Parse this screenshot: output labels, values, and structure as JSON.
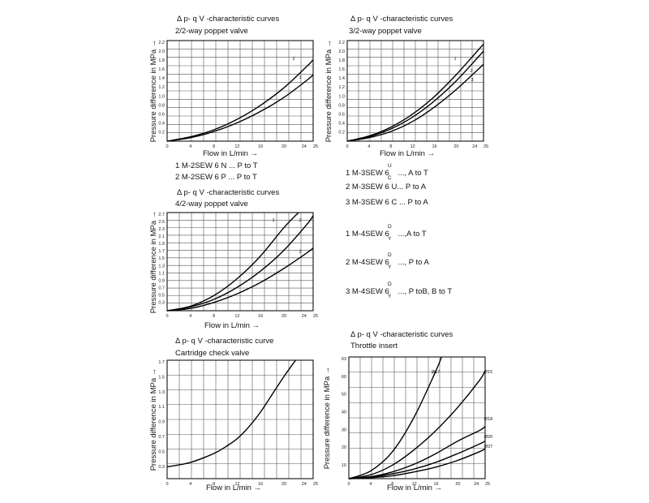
{
  "charts": [
    {
      "title": "Δ p- q V -characteristic curves",
      "subtitle": "2/2-way poppet valve",
      "ylabel": "Pressure difference in MPa →",
      "xlabel": "Flow in L/min →",
      "yticks": [
        "2.2",
        "2.0",
        "1.8",
        "1.6",
        "1.4",
        "1.2",
        "1.0",
        "0.8",
        "0.6",
        "0.4",
        "0.2"
      ],
      "xticks": [
        "0",
        "4",
        "8",
        "12",
        "16",
        "20",
        "24",
        "25"
      ],
      "curve_labels": [
        "2",
        "1"
      ]
    },
    {
      "title": "Δ p- q V -characteristic curves",
      "subtitle": "3/2-way poppet valve",
      "ylabel": "Pressure difference in MPa →",
      "xlabel": "Flow in L/min →",
      "yticks": [
        "2.2",
        "2.0",
        "1.8",
        "1.6",
        "1.4",
        "1.2",
        "1.0",
        "0.8",
        "0.6",
        "0.4",
        "0.2"
      ],
      "xticks": [
        "0",
        "4",
        "8",
        "12",
        "16",
        "20",
        "24",
        "25"
      ],
      "curve_labels": [
        "1",
        "2",
        "3"
      ]
    },
    {
      "title": "Δ p- q V -characteristic curves",
      "subtitle": "4/2-way poppet valve",
      "ylabel": "Pressure difference in MPa →",
      "xlabel": "Flow in L/min →",
      "yticks": [
        "2.7",
        "2.5",
        "2.3",
        "2.1",
        "1.9",
        "1.7",
        "1.5",
        "1.3",
        "1.1",
        "0.9",
        "0.7",
        "0.5",
        "0.3"
      ],
      "xticks": [
        "0",
        "4",
        "8",
        "12",
        "16",
        "20",
        "24",
        "25"
      ],
      "curve_labels": [
        "1",
        "2",
        "3"
      ]
    },
    {
      "title": "Δ p- q V -characteristic curve",
      "subtitle": "Cartridge check valve",
      "ylabel": "Pressure difference in MPa →",
      "xlabel": "Flow in L/min →",
      "yticks": [
        "1.7",
        "1.5",
        "1.3",
        "1.1",
        "0.9",
        "0.7",
        "0.5",
        "0.3"
      ],
      "xticks": [
        "0",
        "4",
        "8",
        "12",
        "16",
        "20",
        "24",
        "25"
      ],
      "curve_labels": []
    },
    {
      "title": "Δ p- q V -characteristic curves",
      "subtitle": "Throttle insert",
      "ylabel": "Pressure difference in MPa →",
      "xlabel": "Flow in L/min →",
      "yticks": [
        "63",
        "60",
        "50",
        "40",
        "30",
        "20",
        "10"
      ],
      "xticks": [
        "0",
        "4",
        "8",
        "12",
        "16",
        "20",
        "24",
        "25"
      ],
      "curve_labels": [
        "Ø17",
        "Ø15",
        "Ø18",
        "Ø20",
        "Ø27"
      ]
    }
  ],
  "legend_22": [
    "1 M-2SEW 6 N ... P to T",
    "2 M-2SEW 6 P ... P to T"
  ],
  "legend_right": [
    {
      "main": "1 M-3SEW 6",
      "sup": "U",
      "sub": "C",
      "rest": "..., A to T"
    },
    {
      "main": "2 M-3SEW 6 U... P to A",
      "sup": "",
      "sub": "",
      "rest": ""
    },
    {
      "main": "3 M-3SEW 6 C ... P to A",
      "sup": "",
      "sub": "",
      "rest": ""
    },
    {
      "main": "1 M-4SEW 6",
      "sup": "D",
      "sub": "Y",
      "rest": "...,A to T"
    },
    {
      "main": "2 M-4SEW 6",
      "sup": "D",
      "sub": "Y",
      "rest": "..., P to A"
    },
    {
      "main": "3 M-4SEW 6",
      "sup": "D",
      "sub": "Y",
      "rest": "..., P toB, B to T"
    }
  ],
  "chart_data": [
    {
      "type": "line",
      "title": "Δ p- q V -characteristic curves",
      "subtitle": "2/2-way poppet valve",
      "xlabel": "Flow in L/min →",
      "ylabel": "Pressure difference in MPa →",
      "xlim": [
        0,
        25
      ],
      "ylim": [
        0,
        2.3
      ],
      "grid": true,
      "series": [
        {
          "name": "1",
          "x": [
            0,
            4,
            8,
            12,
            16,
            20,
            24,
            25
          ],
          "y": [
            0.0,
            0.08,
            0.22,
            0.42,
            0.68,
            1.0,
            1.4,
            1.52
          ]
        },
        {
          "name": "2",
          "x": [
            0,
            4,
            8,
            12,
            16,
            20,
            24,
            25
          ],
          "y": [
            0.0,
            0.1,
            0.26,
            0.5,
            0.82,
            1.22,
            1.72,
            1.86
          ]
        }
      ]
    },
    {
      "type": "line",
      "title": "Δ p- q V -characteristic curves",
      "subtitle": "3/2-way poppet valve",
      "xlabel": "Flow in L/min →",
      "ylabel": "Pressure difference in MPa →",
      "xlim": [
        0,
        25
      ],
      "ylim": [
        0,
        2.3
      ],
      "grid": true,
      "series": [
        {
          "name": "1",
          "x": [
            0,
            4,
            8,
            12,
            16,
            20,
            24,
            25
          ],
          "y": [
            0.0,
            0.12,
            0.32,
            0.62,
            1.02,
            1.52,
            2.08,
            2.22
          ]
        },
        {
          "name": "2",
          "x": [
            0,
            4,
            8,
            12,
            16,
            20,
            24,
            25
          ],
          "y": [
            0.0,
            0.1,
            0.28,
            0.55,
            0.92,
            1.38,
            1.92,
            2.06
          ]
        },
        {
          "name": "3",
          "x": [
            0,
            4,
            8,
            12,
            16,
            20,
            24,
            25
          ],
          "y": [
            0.0,
            0.08,
            0.22,
            0.45,
            0.78,
            1.18,
            1.64,
            1.76
          ]
        }
      ]
    },
    {
      "type": "line",
      "title": "Δ p- q V -characteristic curves",
      "subtitle": "4/2-way poppet valve",
      "xlabel": "Flow in L/min →",
      "ylabel": "Pressure difference in MPa →",
      "xlim": [
        0,
        25
      ],
      "ylim": [
        0.1,
        2.7
      ],
      "grid": true,
      "series": [
        {
          "name": "1",
          "x": [
            0,
            4,
            8,
            12,
            16,
            20,
            22.5
          ],
          "y": [
            0.1,
            0.22,
            0.5,
            0.95,
            1.55,
            2.3,
            2.7
          ]
        },
        {
          "name": "2",
          "x": [
            0,
            4,
            8,
            12,
            16,
            20,
            24,
            25
          ],
          "y": [
            0.1,
            0.2,
            0.4,
            0.72,
            1.15,
            1.7,
            2.4,
            2.62
          ]
        },
        {
          "name": "3",
          "x": [
            0,
            4,
            8,
            12,
            16,
            20,
            24,
            25
          ],
          "y": [
            0.1,
            0.16,
            0.32,
            0.55,
            0.85,
            1.22,
            1.64,
            1.76
          ]
        }
      ]
    },
    {
      "type": "line",
      "title": "Δ p- q V -characteristic curve",
      "subtitle": "Cartridge check valve",
      "xlabel": "Flow in L/min →",
      "ylabel": "Pressure difference in MPa →",
      "xlim": [
        0,
        25
      ],
      "ylim": [
        0.2,
        1.8
      ],
      "grid": true,
      "series": [
        {
          "x": [
            0,
            4,
            8,
            10,
            12,
            14,
            16,
            18,
            20,
            22
          ],
          "y": [
            0.36,
            0.42,
            0.54,
            0.63,
            0.74,
            0.9,
            1.1,
            1.34,
            1.58,
            1.8
          ]
        }
      ]
    },
    {
      "type": "line",
      "title": "Δ p- q V -characteristic curves",
      "subtitle": "Throttle insert",
      "xlabel": "Flow in L/min →",
      "ylabel": "Pressure difference in MPa →",
      "xlim": [
        0,
        25
      ],
      "ylim": [
        0,
        63
      ],
      "grid": true,
      "series": [
        {
          "name": "Ø17",
          "x": [
            0,
            4,
            8,
            12,
            16,
            17
          ],
          "y": [
            0,
            4,
            14,
            32,
            56,
            63
          ]
        },
        {
          "name": "Ø15",
          "x": [
            0,
            4,
            8,
            12,
            16,
            20,
            24,
            25
          ],
          "y": [
            0,
            2,
            7,
            15,
            25,
            37,
            51,
            56
          ]
        },
        {
          "name": "Ø18",
          "x": [
            0,
            4,
            8,
            12,
            16,
            20,
            24,
            25
          ],
          "y": [
            0,
            1,
            3.5,
            7.5,
            13,
            19.5,
            25,
            27
          ]
        },
        {
          "name": "Ø20",
          "x": [
            0,
            4,
            8,
            12,
            16,
            20,
            24,
            25
          ],
          "y": [
            0,
            0.8,
            2.5,
            5,
            8.5,
            13,
            18,
            19.5
          ]
        },
        {
          "name": "Ø27",
          "x": [
            0,
            4,
            8,
            12,
            16,
            20,
            24,
            25
          ],
          "y": [
            0,
            0.5,
            1.5,
            3.5,
            6,
            9.5,
            14,
            15.5
          ]
        }
      ]
    }
  ]
}
